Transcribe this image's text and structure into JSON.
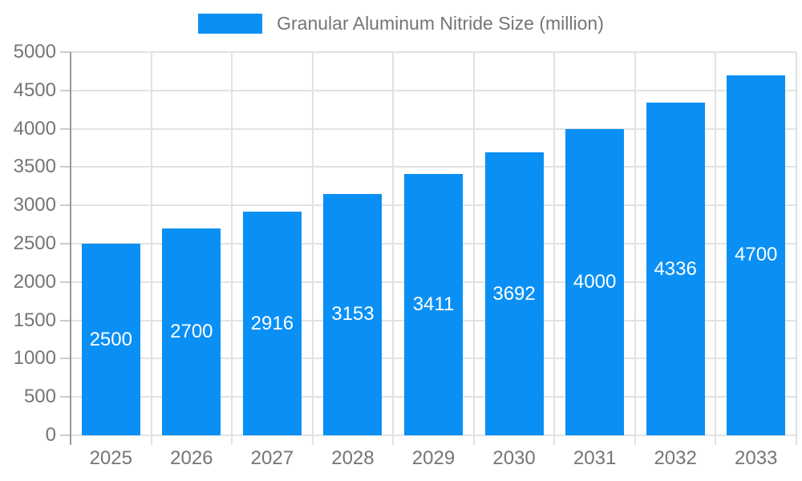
{
  "legend": {
    "label": "Granular Aluminum Nitride Size (million)"
  },
  "colors": {
    "bar": "#0a90f5",
    "grid": "#e2e2e2",
    "axis": "#999999",
    "tick": "#cccccc",
    "text": "#757575",
    "bar_label": "#ffffff",
    "background": "#ffffff"
  },
  "chart_data": {
    "type": "bar",
    "title": "Granular Aluminum Nitride Size (million)",
    "categories": [
      "2025",
      "2026",
      "2027",
      "2028",
      "2029",
      "2030",
      "2031",
      "2032",
      "2033"
    ],
    "values": [
      2500,
      2700,
      2916,
      3153,
      3411,
      3692,
      4000,
      4336,
      4700
    ],
    "value_labels": [
      "2500",
      "2700",
      "2916",
      "3153",
      "3411",
      "3692",
      "4000",
      "4336",
      "4700"
    ],
    "yticks": [
      0,
      500,
      1000,
      1500,
      2000,
      2500,
      3000,
      3500,
      4000,
      4500,
      5000
    ],
    "ytick_labels": [
      "0",
      "500",
      "1000",
      "1500",
      "2000",
      "2500",
      "3000",
      "3500",
      "4000",
      "4500",
      "5000"
    ],
    "xlabel": "",
    "ylabel": "",
    "ylim": [
      0,
      5000
    ],
    "grid": true,
    "legend_position": "top-center",
    "bar_label_position": "inside-center"
  }
}
